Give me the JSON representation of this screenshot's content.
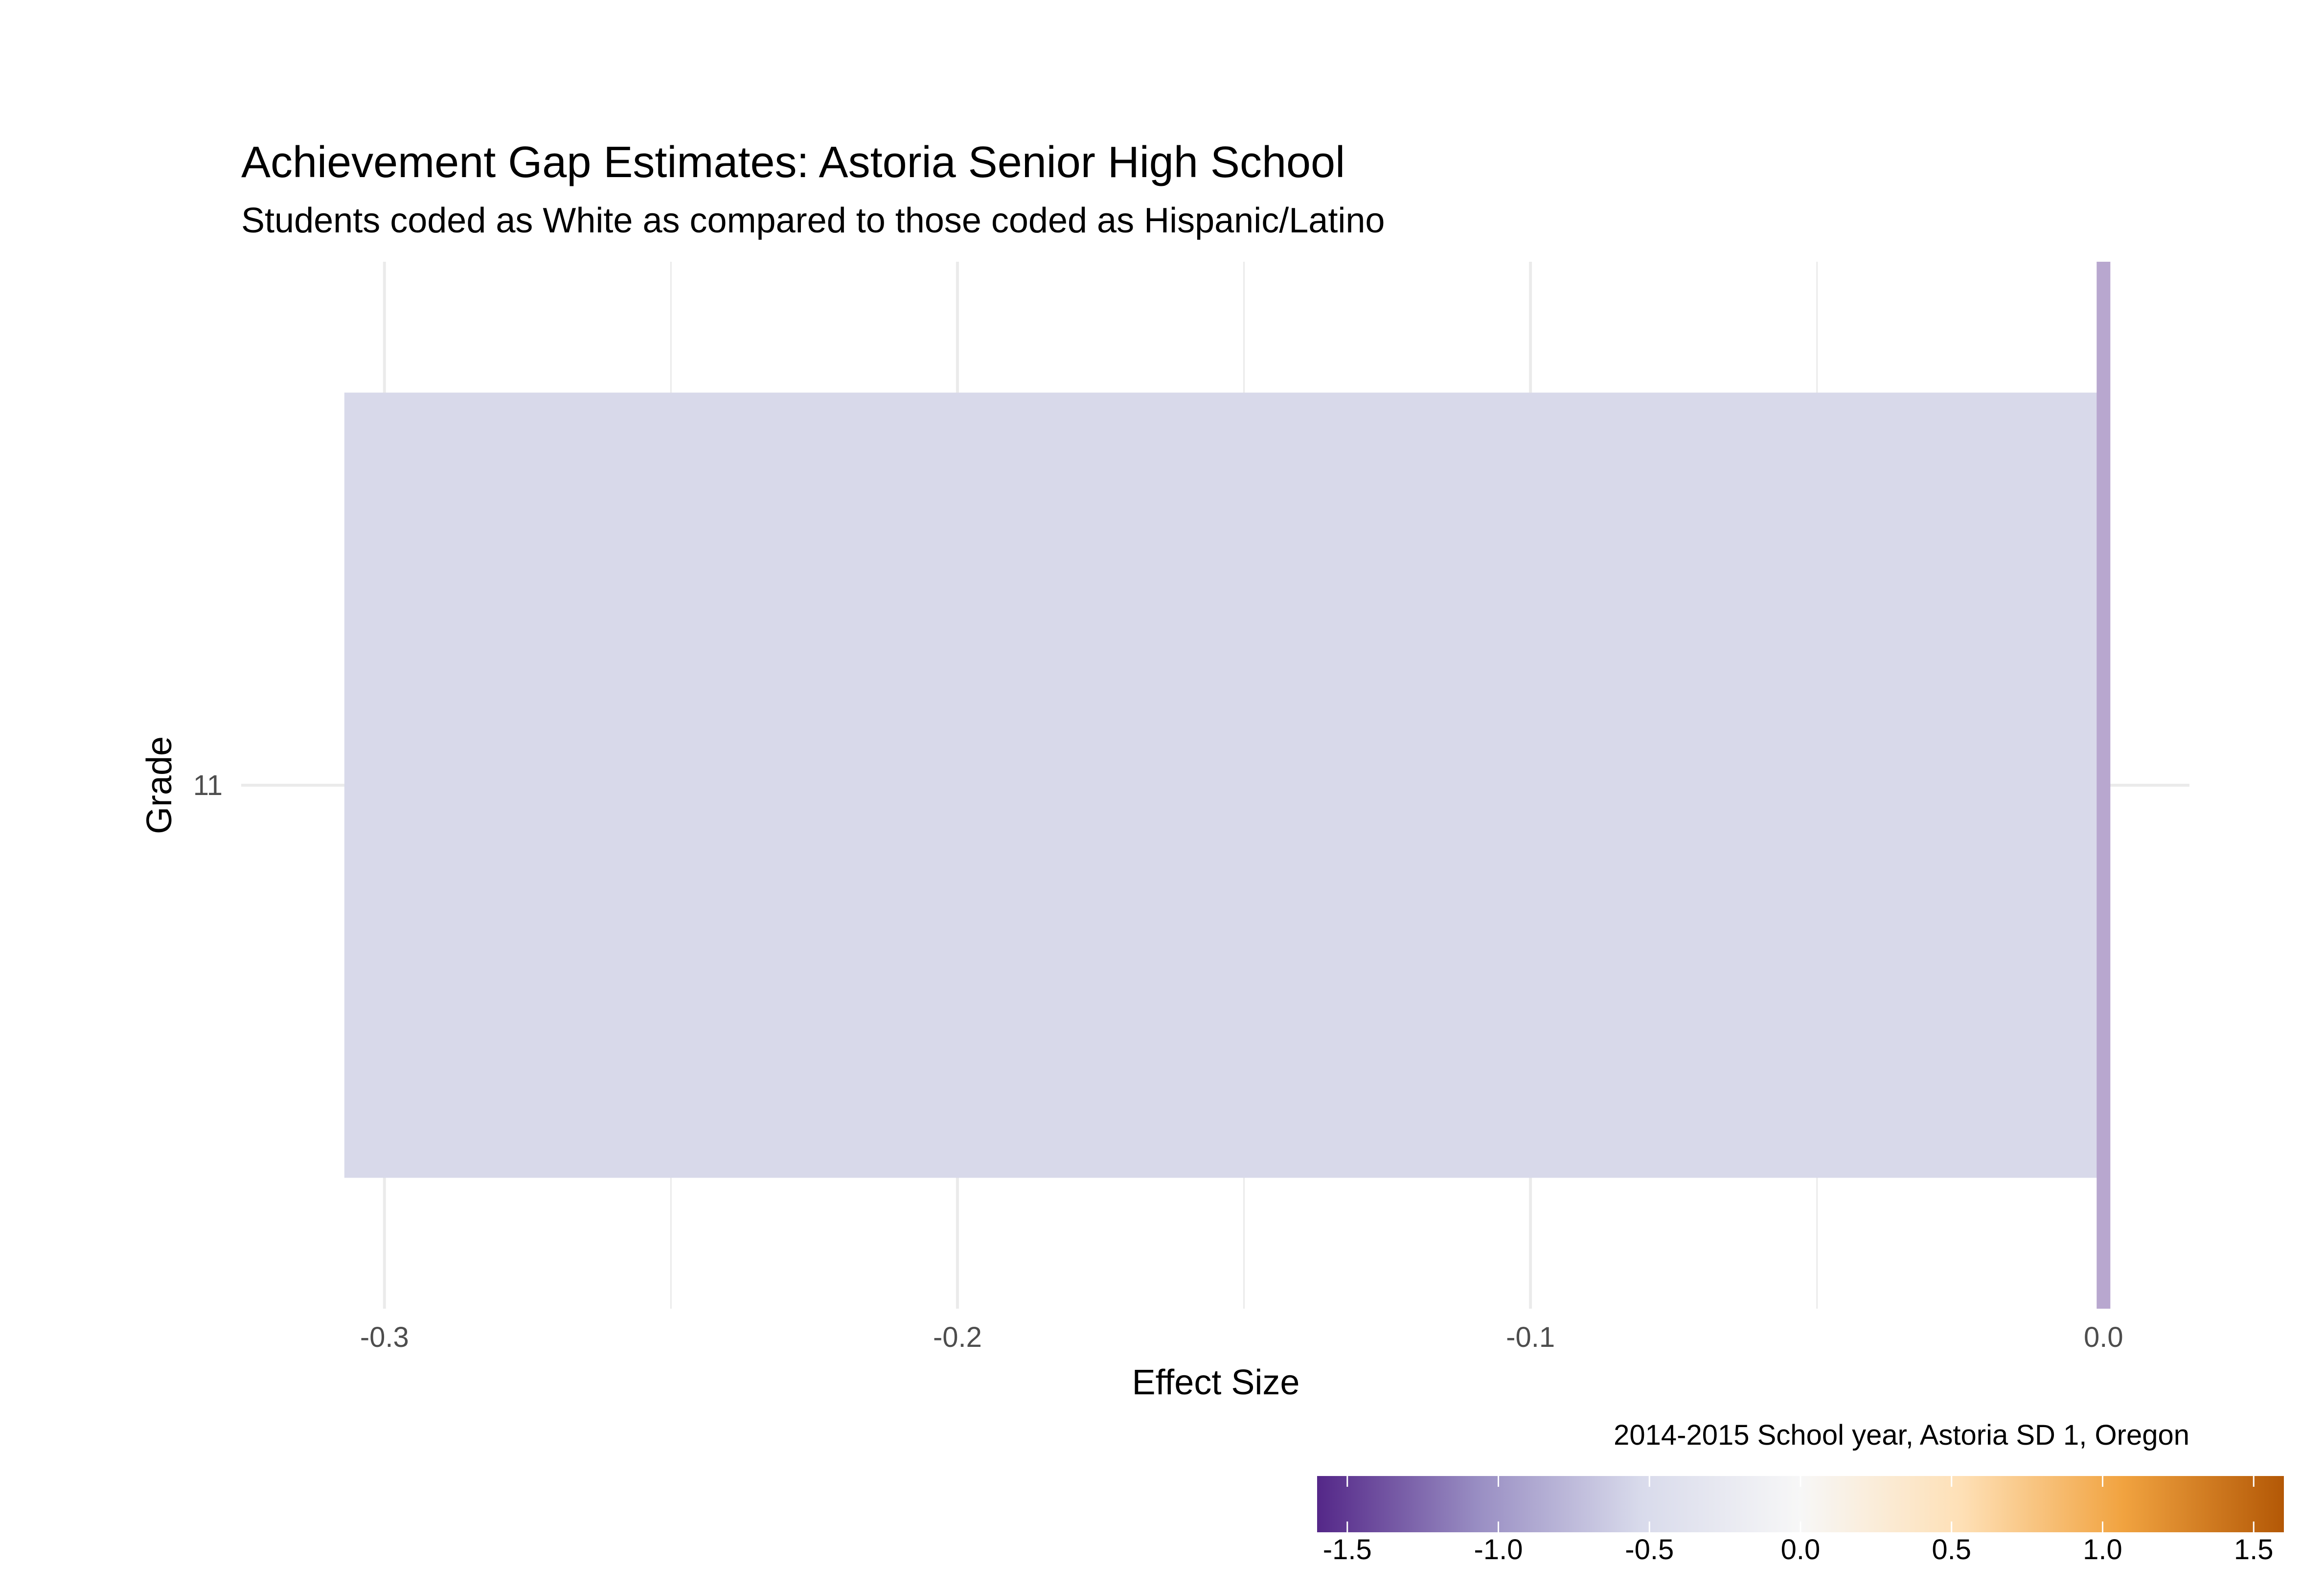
{
  "chart_data": {
    "type": "bar",
    "orientation": "horizontal",
    "title": "Achievement Gap Estimates: Astoria Senior High School",
    "subtitle": "Students coded as White as compared to those coded as Hispanic/Latino",
    "xlabel": "Effect Size",
    "ylabel": "Grade",
    "caption": "2014-2015 School year, Astoria SD 1, Oregon",
    "categories": [
      "11"
    ],
    "values": [
      -0.307
    ],
    "xlim": [
      -0.325,
      0.015
    ],
    "x_ticks": [
      -0.3,
      -0.2,
      -0.1,
      0.0
    ],
    "x_tick_labels": [
      "-0.3",
      "-0.2",
      "-0.1",
      "0.0"
    ],
    "reference_line": 0.0,
    "grid": true,
    "legend": {
      "type": "colorbar",
      "placement": "bottom-right",
      "range": [
        -1.6,
        1.6
      ],
      "ticks": [
        -1.5,
        -1.0,
        -0.5,
        0.0,
        0.5,
        1.0,
        1.5
      ],
      "tick_labels": [
        "-1.5",
        "-1.0",
        "-0.5",
        "0.0",
        "0.5",
        "1.0",
        "1.5"
      ],
      "palette": [
        "#542788",
        "#998ec3",
        "#d8daeb",
        "#f7f7f7",
        "#fee0b6",
        "#f1a340",
        "#b35806"
      ]
    },
    "colors": {
      "bar_fill": "#d8d9ea",
      "reference_line": "#b8a7cf",
      "grid": "#ebebeb"
    }
  }
}
